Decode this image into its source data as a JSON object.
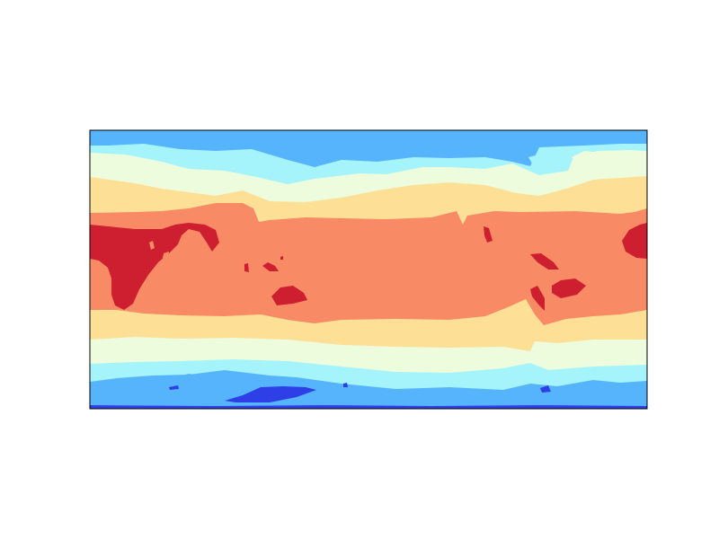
{
  "chart_data": {
    "type": "heatmap",
    "subtype": "filled-contour-map",
    "projection": "equirectangular",
    "title": "",
    "xlabel": "",
    "ylabel": "",
    "colormap": "RdYlBu_r",
    "axis_ticks": "none",
    "grid": false,
    "legend": "none",
    "level_colors": [
      "#2f3fe8",
      "#56b4fc",
      "#a5f4fc",
      "#ecfcdc",
      "#fde096",
      "#f88a66",
      "#cd1f2f"
    ],
    "bands_north_to_south": [
      "#56b4fc",
      "#a5f4fc",
      "#ecfcdc",
      "#fde096",
      "#f88a66",
      "#fde096",
      "#ecfcdc",
      "#a5f4fc",
      "#56b4fc",
      "#2f3fe8"
    ],
    "frame_color": "#000000"
  }
}
